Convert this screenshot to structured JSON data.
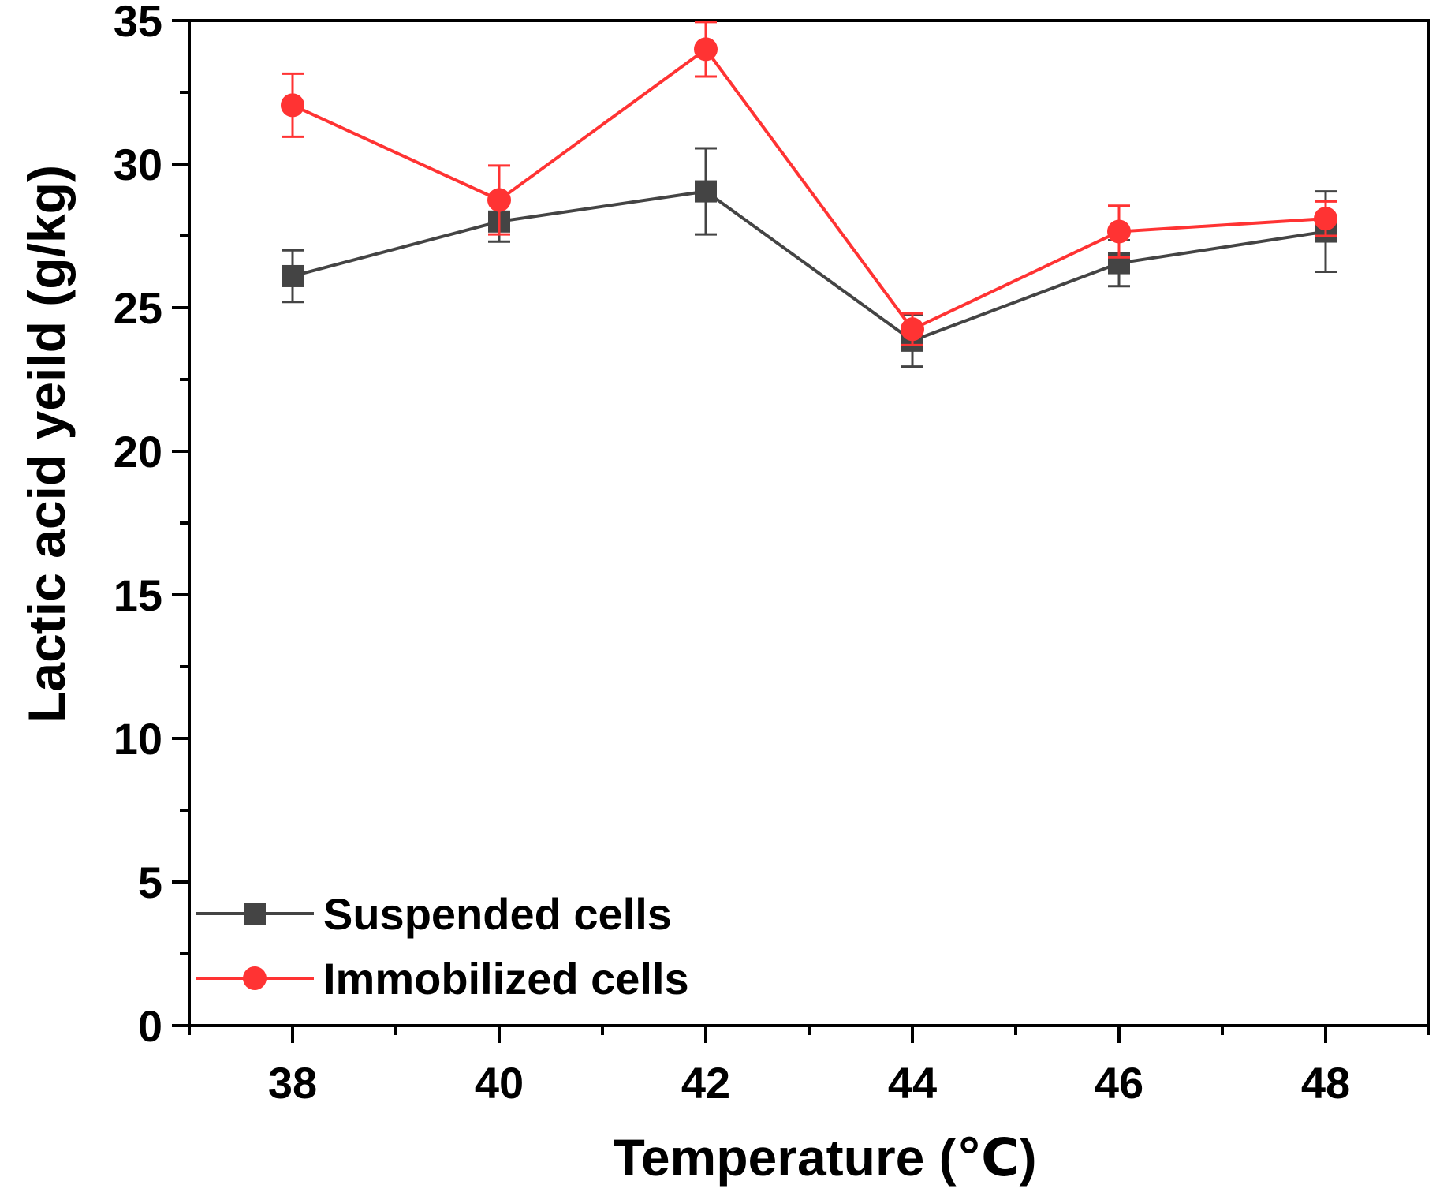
{
  "chart_data": {
    "type": "line",
    "title": "",
    "xlabel": "Temperature (℃)",
    "ylabel": "Lactic acid yeild (g/kg)",
    "xlim": [
      37,
      49
    ],
    "ylim": [
      0,
      35
    ],
    "x_ticks": [
      38,
      40,
      42,
      44,
      46,
      48
    ],
    "x_minor_ticks": [
      37,
      39,
      41,
      43,
      45,
      47,
      49
    ],
    "y_ticks": [
      0,
      5,
      10,
      15,
      20,
      25,
      30,
      35
    ],
    "y_minor_ticks": [
      2.5,
      7.5,
      12.5,
      17.5,
      22.5,
      27.5,
      32.5
    ],
    "grid": false,
    "legend_position": "bottom-left",
    "series": [
      {
        "name": "Suspended cells",
        "marker": "square",
        "color": "#444444",
        "x": [
          38,
          40,
          42,
          44,
          46,
          48
        ],
        "values": [
          26.1,
          28.0,
          29.05,
          23.85,
          26.55,
          27.65
        ],
        "errors": [
          0.9,
          0.7,
          1.5,
          0.9,
          0.8,
          1.4
        ]
      },
      {
        "name": "Immobilized cells",
        "marker": "circle",
        "color": "#ff3333",
        "x": [
          38,
          40,
          42,
          44,
          46,
          48
        ],
        "values": [
          32.05,
          28.75,
          34.0,
          24.25,
          27.65,
          28.1
        ],
        "errors": [
          1.1,
          1.2,
          0.95,
          0.55,
          0.9,
          0.6
        ]
      }
    ]
  }
}
